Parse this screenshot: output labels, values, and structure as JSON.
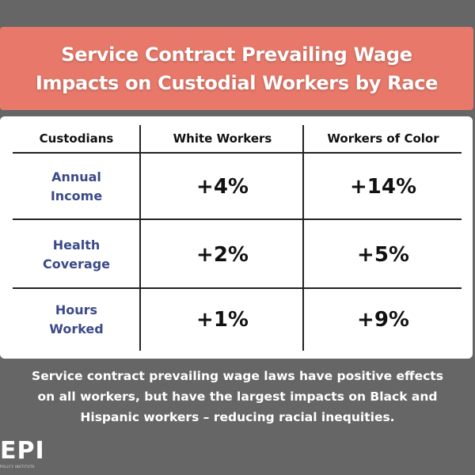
{
  "title": {
    "line1": "Service Contract Prevailing Wage",
    "line2": "Impacts on Custodial Workers by Race"
  },
  "table": {
    "headers": [
      "Custodians",
      "White Workers",
      "Workers of Color"
    ],
    "rows": [
      {
        "label1": "Annual",
        "label2": "Income",
        "white": "+4%",
        "color": "+14%"
      },
      {
        "label1": "Health",
        "label2": "Coverage",
        "white": "+2%",
        "color": "+5%"
      },
      {
        "label1": "Hours",
        "label2": "Worked",
        "white": "+1%",
        "color": "+9%"
      }
    ]
  },
  "footer": {
    "line1": "Service contract prevailing wage laws have positive effects",
    "line2": "on all workers, but have the largest impacts on Black and",
    "line3": "Hispanic workers – reducing racial inequities."
  },
  "logo": {
    "text": "EPI",
    "subtitle": "POLICY INSTITUTE"
  },
  "colors": {
    "background": "#666666",
    "banner": "#e8796a",
    "label": "#3b4a88"
  }
}
